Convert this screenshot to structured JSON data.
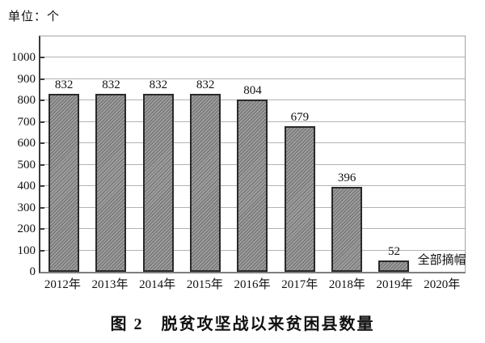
{
  "page": {
    "unit_label": "单位：个",
    "caption": "图 2　脱贫攻坚战以来贫困县数量"
  },
  "chart_data": {
    "type": "bar",
    "title": "图 2　脱贫攻坚战以来贫困县数量",
    "unit": "单位：个",
    "categories": [
      "2012年",
      "2013年",
      "2014年",
      "2015年",
      "2016年",
      "2017年",
      "2018年",
      "2019年",
      "2020年"
    ],
    "values": [
      832,
      832,
      832,
      832,
      804,
      679,
      396,
      52,
      null
    ],
    "annotation": {
      "text": "全部摘帽",
      "category": "2020年"
    },
    "xlabel": "",
    "ylabel": "",
    "ylim": [
      0,
      1100
    ],
    "yticks": [
      0,
      100,
      200,
      300,
      400,
      500,
      600,
      700,
      800,
      900,
      1000
    ],
    "grid": true,
    "legend": null,
    "colors": {
      "bar_fill": "#9d9d9d",
      "bar_hatch": "#6e6e6e",
      "bar_border": "#2a2a2a",
      "gridline": "#b3b3b3",
      "axis": "#3c3c3c",
      "text": "#111111"
    }
  }
}
